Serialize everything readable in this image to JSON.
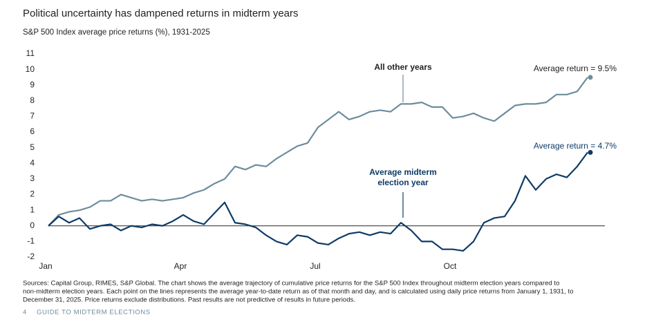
{
  "chart_data": {
    "type": "line",
    "title": "Political uncertainty has dampened returns in midterm years",
    "subtitle": "S&P 500 Index average price returns (%), 1931-2025",
    "categories": [
      "Jan",
      null,
      null,
      null,
      null,
      null,
      null,
      null,
      null,
      null,
      null,
      null,
      null,
      "Apr",
      null,
      null,
      null,
      null,
      null,
      null,
      null,
      null,
      null,
      null,
      null,
      null,
      "Jul",
      null,
      null,
      null,
      null,
      null,
      null,
      null,
      null,
      null,
      null,
      null,
      null,
      "Oct",
      null,
      null,
      null,
      null,
      null,
      null,
      null,
      null,
      null,
      null,
      null,
      null,
      null
    ],
    "series": [
      {
        "name": "All other years",
        "color": "#6d8c9c",
        "values": [
          0,
          0.7,
          0.9,
          1.0,
          1.2,
          1.6,
          1.6,
          2.0,
          1.8,
          1.6,
          1.7,
          1.6,
          1.7,
          1.8,
          2.1,
          2.3,
          2.7,
          3.0,
          3.8,
          3.6,
          3.9,
          3.8,
          4.3,
          4.7,
          5.1,
          5.3,
          6.3,
          6.8,
          7.3,
          6.8,
          7.0,
          7.3,
          7.4,
          7.3,
          7.8,
          7.8,
          7.9,
          7.6,
          7.6,
          6.9,
          7.0,
          7.2,
          6.9,
          6.7,
          7.2,
          7.7,
          7.8,
          7.8,
          7.9,
          8.4,
          8.4,
          8.6,
          9.5
        ]
      },
      {
        "name": "Average midterm election year",
        "color": "#0d3a66",
        "values": [
          0,
          0.6,
          0.2,
          0.5,
          -0.2,
          0,
          0.1,
          -0.3,
          0,
          -0.1,
          0.1,
          0,
          0.3,
          0.7,
          0.3,
          0.1,
          0.8,
          1.5,
          0.2,
          0.1,
          -0.1,
          -0.6,
          -1.0,
          -1.2,
          -0.6,
          -0.7,
          -1.1,
          -1.2,
          -0.8,
          -0.5,
          -0.4,
          -0.6,
          -0.4,
          -0.5,
          0.2,
          -0.3,
          -1.0,
          -1.0,
          -1.5,
          -1.5,
          -1.6,
          -1.0,
          0.2,
          0.5,
          0.6,
          1.6,
          3.2,
          2.3,
          3.0,
          3.3,
          3.1,
          3.8,
          4.7
        ]
      }
    ],
    "annotations": [
      "Average return = 9.5%",
      "Average return = 4.7%"
    ],
    "ylim": [
      -2,
      11
    ],
    "yticks": [
      -2,
      -1,
      0,
      1,
      2,
      3,
      4,
      5,
      6,
      7,
      8,
      9,
      10,
      11
    ],
    "grid": false,
    "source": [
      "Sources: Capital Group, RIMES, S&P Global. The chart shows the average trajectory of cumulative price returns for the S&P 500 Index throughout midterm election years compared to",
      "non-midterm election years. Each point on the lines represents the average year-to-date return as of that month and day, and is calculated using daily price returns from January 1, 1931, to",
      "December 31, 2025. Price returns exclude distributions. Past results are not predictive of results in future periods."
    ],
    "page_number": "4",
    "footer": "GUIDE TO MIDTERM ELECTIONS"
  }
}
